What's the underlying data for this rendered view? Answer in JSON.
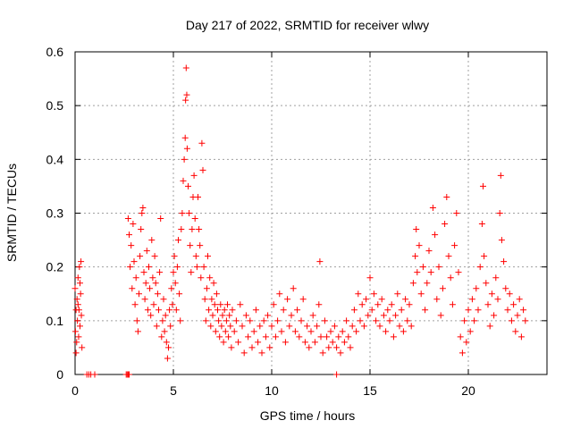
{
  "chart_data": {
    "type": "scatter",
    "title": "Day 217 of 2022, SRMTID for receiver wlwy",
    "xlabel": "GPS time / hours",
    "ylabel": "SRMTID / TECUs",
    "xlim": [
      0,
      24
    ],
    "ylim": [
      0,
      0.6
    ],
    "x_ticks": [
      0,
      5,
      10,
      15,
      20
    ],
    "x_tick_labels": [
      "0",
      "5",
      "10",
      "15",
      "20"
    ],
    "y_ticks": [
      0,
      0.1,
      0.2,
      0.3,
      0.4,
      0.5,
      0.6
    ],
    "y_tick_labels": [
      "0",
      "0.1",
      "0.2",
      "0.3",
      "0.4",
      "0.5",
      "0.6"
    ],
    "grid": true,
    "marker": "+",
    "color": "#ff0000",
    "series": [
      {
        "name": "SRMTID",
        "points": [
          [
            0.0,
            0.16
          ],
          [
            0.02,
            0.08
          ],
          [
            0.05,
            0.12
          ],
          [
            0.08,
            0.06
          ],
          [
            0.1,
            0.14
          ],
          [
            0.12,
            0.1
          ],
          [
            0.15,
            0.18
          ],
          [
            0.18,
            0.07
          ],
          [
            0.2,
            0.12
          ],
          [
            0.22,
            0.2
          ],
          [
            0.25,
            0.09
          ],
          [
            0.28,
            0.15
          ],
          [
            0.3,
            0.21
          ],
          [
            0.32,
            0.11
          ],
          [
            0.35,
            0.05
          ],
          [
            0.05,
            0.04
          ],
          [
            0.15,
            0.13
          ],
          [
            0.25,
            0.17
          ],
          [
            0.6,
            0.0
          ],
          [
            0.7,
            0.0
          ],
          [
            0.8,
            0.0
          ],
          [
            1.0,
            0.0
          ],
          [
            2.6,
            0.0
          ],
          [
            2.65,
            0.0
          ],
          [
            2.7,
            0.0
          ],
          [
            2.75,
            0.0
          ],
          [
            13.3,
            0.0
          ],
          [
            2.7,
            0.29
          ],
          [
            2.75,
            0.26
          ],
          [
            2.8,
            0.2
          ],
          [
            2.85,
            0.24
          ],
          [
            2.9,
            0.16
          ],
          [
            2.95,
            0.28
          ],
          [
            3.0,
            0.21
          ],
          [
            3.05,
            0.13
          ],
          [
            3.1,
            0.18
          ],
          [
            3.15,
            0.1
          ],
          [
            3.2,
            0.08
          ],
          [
            3.25,
            0.15
          ],
          [
            3.3,
            0.22
          ],
          [
            3.35,
            0.27
          ],
          [
            3.4,
            0.3
          ],
          [
            3.45,
            0.31
          ],
          [
            3.5,
            0.19
          ],
          [
            3.55,
            0.14
          ],
          [
            3.6,
            0.17
          ],
          [
            3.65,
            0.23
          ],
          [
            3.7,
            0.12
          ],
          [
            3.75,
            0.2
          ],
          [
            3.8,
            0.16
          ],
          [
            3.85,
            0.11
          ],
          [
            3.9,
            0.25
          ],
          [
            3.95,
            0.18
          ],
          [
            4.0,
            0.13
          ],
          [
            4.05,
            0.22
          ],
          [
            4.1,
            0.17
          ],
          [
            4.15,
            0.09
          ],
          [
            4.2,
            0.15
          ],
          [
            4.25,
            0.12
          ],
          [
            4.3,
            0.19
          ],
          [
            4.35,
            0.29
          ],
          [
            4.4,
            0.07
          ],
          [
            4.45,
            0.1
          ],
          [
            4.5,
            0.14
          ],
          [
            4.55,
            0.08
          ],
          [
            4.6,
            0.11
          ],
          [
            4.65,
            0.06
          ],
          [
            4.7,
            0.03
          ],
          [
            4.75,
            0.05
          ],
          [
            4.8,
            0.12
          ],
          [
            4.85,
            0.09
          ],
          [
            4.9,
            0.16
          ],
          [
            4.95,
            0.13
          ],
          [
            5.0,
            0.19
          ],
          [
            5.05,
            0.22
          ],
          [
            5.1,
            0.17
          ],
          [
            5.15,
            0.12
          ],
          [
            5.2,
            0.2
          ],
          [
            5.25,
            0.25
          ],
          [
            5.3,
            0.15
          ],
          [
            5.35,
            0.1
          ],
          [
            5.4,
            0.27
          ],
          [
            5.45,
            0.3
          ],
          [
            5.5,
            0.36
          ],
          [
            5.55,
            0.4
          ],
          [
            5.6,
            0.44
          ],
          [
            5.62,
            0.51
          ],
          [
            5.65,
            0.57
          ],
          [
            5.68,
            0.52
          ],
          [
            5.7,
            0.42
          ],
          [
            5.75,
            0.35
          ],
          [
            5.8,
            0.3
          ],
          [
            5.85,
            0.24
          ],
          [
            5.9,
            0.19
          ],
          [
            5.95,
            0.27
          ],
          [
            6.0,
            0.33
          ],
          [
            6.05,
            0.37
          ],
          [
            6.1,
            0.29
          ],
          [
            6.15,
            0.22
          ],
          [
            6.2,
            0.2
          ],
          [
            6.25,
            0.33
          ],
          [
            6.3,
            0.27
          ],
          [
            6.35,
            0.24
          ],
          [
            6.4,
            0.18
          ],
          [
            6.45,
            0.43
          ],
          [
            6.5,
            0.38
          ],
          [
            6.55,
            0.2
          ],
          [
            6.6,
            0.14
          ],
          [
            6.65,
            0.1
          ],
          [
            6.7,
            0.16
          ],
          [
            6.75,
            0.22
          ],
          [
            6.8,
            0.12
          ],
          [
            6.85,
            0.18
          ],
          [
            6.9,
            0.09
          ],
          [
            6.95,
            0.14
          ],
          [
            7.0,
            0.11
          ],
          [
            7.05,
            0.17
          ],
          [
            7.1,
            0.13
          ],
          [
            7.15,
            0.08
          ],
          [
            7.2,
            0.15
          ],
          [
            7.25,
            0.12
          ],
          [
            7.3,
            0.1
          ],
          [
            7.35,
            0.07
          ],
          [
            7.4,
            0.13
          ],
          [
            7.45,
            0.09
          ],
          [
            7.5,
            0.11
          ],
          [
            7.55,
            0.06
          ],
          [
            7.6,
            0.12
          ],
          [
            7.65,
            0.08
          ],
          [
            7.7,
            0.1
          ],
          [
            7.75,
            0.13
          ],
          [
            7.8,
            0.07
          ],
          [
            7.85,
            0.11
          ],
          [
            7.9,
            0.09
          ],
          [
            7.95,
            0.05
          ],
          [
            8.0,
            0.12
          ],
          [
            8.1,
            0.08
          ],
          [
            8.2,
            0.1
          ],
          [
            8.3,
            0.06
          ],
          [
            8.4,
            0.13
          ],
          [
            8.5,
            0.09
          ],
          [
            8.6,
            0.04
          ],
          [
            8.7,
            0.11
          ],
          [
            8.8,
            0.07
          ],
          [
            8.9,
            0.1
          ],
          [
            9.0,
            0.05
          ],
          [
            9.1,
            0.08
          ],
          [
            9.2,
            0.12
          ],
          [
            9.3,
            0.06
          ],
          [
            9.4,
            0.09
          ],
          [
            9.5,
            0.04
          ],
          [
            9.6,
            0.1
          ],
          [
            9.7,
            0.07
          ],
          [
            9.8,
            0.11
          ],
          [
            9.9,
            0.05
          ],
          [
            10.0,
            0.09
          ],
          [
            10.1,
            0.13
          ],
          [
            10.2,
            0.07
          ],
          [
            10.3,
            0.1
          ],
          [
            10.4,
            0.15
          ],
          [
            10.5,
            0.08
          ],
          [
            10.6,
            0.12
          ],
          [
            10.7,
            0.06
          ],
          [
            10.8,
            0.14
          ],
          [
            10.9,
            0.09
          ],
          [
            11.0,
            0.11
          ],
          [
            11.1,
            0.16
          ],
          [
            11.2,
            0.08
          ],
          [
            11.3,
            0.12
          ],
          [
            11.4,
            0.07
          ],
          [
            11.5,
            0.1
          ],
          [
            11.6,
            0.14
          ],
          [
            11.7,
            0.06
          ],
          [
            11.8,
            0.09
          ],
          [
            11.9,
            0.05
          ],
          [
            12.0,
            0.08
          ],
          [
            12.1,
            0.11
          ],
          [
            12.2,
            0.06
          ],
          [
            12.3,
            0.09
          ],
          [
            12.4,
            0.13
          ],
          [
            12.45,
            0.21
          ],
          [
            12.5,
            0.07
          ],
          [
            12.6,
            0.04
          ],
          [
            12.7,
            0.1
          ],
          [
            12.8,
            0.07
          ],
          [
            12.9,
            0.05
          ],
          [
            13.0,
            0.08
          ],
          [
            13.1,
            0.06
          ],
          [
            13.2,
            0.09
          ],
          [
            13.3,
            0.05
          ],
          [
            13.4,
            0.07
          ],
          [
            13.5,
            0.04
          ],
          [
            13.6,
            0.08
          ],
          [
            13.7,
            0.06
          ],
          [
            13.8,
            0.1
          ],
          [
            13.9,
            0.07
          ],
          [
            14.0,
            0.05
          ],
          [
            14.1,
            0.09
          ],
          [
            14.2,
            0.12
          ],
          [
            14.3,
            0.08
          ],
          [
            14.4,
            0.15
          ],
          [
            14.5,
            0.1
          ],
          [
            14.6,
            0.13
          ],
          [
            14.7,
            0.09
          ],
          [
            14.8,
            0.14
          ],
          [
            14.9,
            0.11
          ],
          [
            15.0,
            0.18
          ],
          [
            15.1,
            0.12
          ],
          [
            15.2,
            0.15
          ],
          [
            15.3,
            0.1
          ],
          [
            15.4,
            0.13
          ],
          [
            15.5,
            0.09
          ],
          [
            15.6,
            0.14
          ],
          [
            15.7,
            0.11
          ],
          [
            15.8,
            0.08
          ],
          [
            15.9,
            0.12
          ],
          [
            16.0,
            0.1
          ],
          [
            16.1,
            0.13
          ],
          [
            16.2,
            0.07
          ],
          [
            16.3,
            0.11
          ],
          [
            16.4,
            0.15
          ],
          [
            16.5,
            0.09
          ],
          [
            16.6,
            0.12
          ],
          [
            16.7,
            0.08
          ],
          [
            16.8,
            0.14
          ],
          [
            16.9,
            0.1
          ],
          [
            17.0,
            0.13
          ],
          [
            17.1,
            0.09
          ],
          [
            17.2,
            0.17
          ],
          [
            17.3,
            0.22
          ],
          [
            17.35,
            0.27
          ],
          [
            17.4,
            0.19
          ],
          [
            17.5,
            0.24
          ],
          [
            17.6,
            0.15
          ],
          [
            17.7,
            0.2
          ],
          [
            17.8,
            0.12
          ],
          [
            17.9,
            0.17
          ],
          [
            18.0,
            0.23
          ],
          [
            18.1,
            0.19
          ],
          [
            18.2,
            0.31
          ],
          [
            18.3,
            0.26
          ],
          [
            18.4,
            0.14
          ],
          [
            18.5,
            0.2
          ],
          [
            18.6,
            0.11
          ],
          [
            18.7,
            0.16
          ],
          [
            18.8,
            0.28
          ],
          [
            18.9,
            0.33
          ],
          [
            19.0,
            0.22
          ],
          [
            19.1,
            0.18
          ],
          [
            19.2,
            0.13
          ],
          [
            19.3,
            0.24
          ],
          [
            19.4,
            0.3
          ],
          [
            19.5,
            0.19
          ],
          [
            19.6,
            0.07
          ],
          [
            19.7,
            0.04
          ],
          [
            19.8,
            0.1
          ],
          [
            19.9,
            0.06
          ],
          [
            20.0,
            0.12
          ],
          [
            20.1,
            0.08
          ],
          [
            20.2,
            0.14
          ],
          [
            20.3,
            0.1
          ],
          [
            20.4,
            0.16
          ],
          [
            20.5,
            0.12
          ],
          [
            20.6,
            0.2
          ],
          [
            20.7,
            0.28
          ],
          [
            20.75,
            0.35
          ],
          [
            20.8,
            0.22
          ],
          [
            20.9,
            0.17
          ],
          [
            21.0,
            0.13
          ],
          [
            21.1,
            0.09
          ],
          [
            21.2,
            0.15
          ],
          [
            21.3,
            0.11
          ],
          [
            21.4,
            0.18
          ],
          [
            21.5,
            0.14
          ],
          [
            21.6,
            0.3
          ],
          [
            21.65,
            0.37
          ],
          [
            21.7,
            0.25
          ],
          [
            21.8,
            0.21
          ],
          [
            21.9,
            0.16
          ],
          [
            22.0,
            0.12
          ],
          [
            22.1,
            0.15
          ],
          [
            22.2,
            0.1
          ],
          [
            22.3,
            0.13
          ],
          [
            22.4,
            0.08
          ],
          [
            22.5,
            0.11
          ],
          [
            22.6,
            0.14
          ],
          [
            22.7,
            0.07
          ],
          [
            22.8,
            0.12
          ],
          [
            22.9,
            0.1
          ]
        ]
      }
    ]
  }
}
